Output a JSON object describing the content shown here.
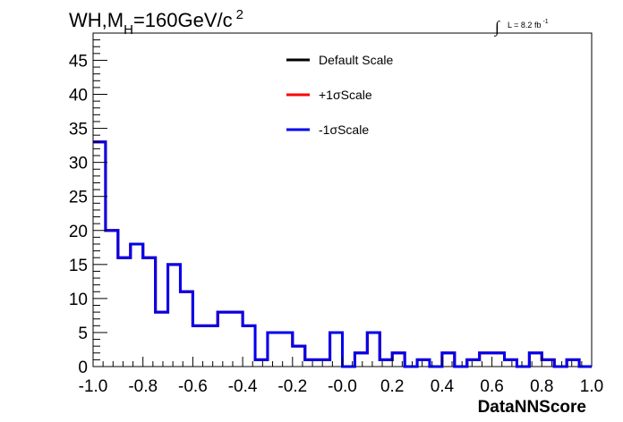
{
  "chart_data": {
    "type": "histogram",
    "title": {
      "main": "WH,M",
      "subscript": "H",
      "rest": "=160GeV/c",
      "superscript": "2"
    },
    "lumi": {
      "symbol": "∫",
      "label": "L = 8.2 fb",
      "superscript": "-1"
    },
    "xlabel": "DataNNScore",
    "ylabel": "",
    "xlim": [
      -1.0,
      1.0
    ],
    "ylim": [
      0,
      49
    ],
    "x_ticks": [
      "-1.0",
      "-0.8",
      "-0.6",
      "-0.4",
      "-0.2",
      "-0.0",
      "0.2",
      "0.4",
      "0.6",
      "0.8",
      "1.0"
    ],
    "y_ticks": [
      "0",
      "5",
      "10",
      "15",
      "20",
      "25",
      "30",
      "35",
      "40",
      "45"
    ],
    "bin_edges_start": -1.0,
    "bin_width": 0.05,
    "series": [
      {
        "name": "Default Scale",
        "color": "#000000",
        "values": [
          33,
          20,
          16,
          18,
          16,
          8,
          15,
          11,
          6,
          6,
          8,
          8,
          6,
          1,
          5,
          5,
          3,
          1,
          1,
          5,
          0,
          2,
          5,
          1,
          2,
          0,
          1,
          0,
          2,
          0,
          1,
          2,
          2,
          1,
          0,
          2,
          1,
          0,
          1,
          0
        ]
      },
      {
        "name": "+1σScale",
        "color": "#ff0000",
        "values": [
          33,
          20,
          16,
          18,
          16,
          8,
          15,
          11,
          6,
          6,
          8,
          8,
          6,
          1,
          5,
          5,
          3,
          1,
          1,
          5,
          0,
          2,
          5,
          1,
          2,
          0,
          1,
          0,
          2,
          0,
          1,
          2,
          2,
          1,
          0,
          2,
          1,
          0,
          1,
          0
        ]
      },
      {
        "name": "-1σScale",
        "color": "#0000ee",
        "values": [
          33,
          20,
          16,
          18,
          16,
          8,
          15,
          11,
          6,
          6,
          8,
          8,
          6,
          1,
          5,
          5,
          3,
          1,
          1,
          5,
          0,
          2,
          5,
          1,
          2,
          0,
          1,
          0,
          2,
          0,
          1,
          2,
          2,
          1,
          0,
          2,
          1,
          0,
          1,
          0
        ]
      }
    ],
    "legend_position": "top-center",
    "grid": false
  }
}
